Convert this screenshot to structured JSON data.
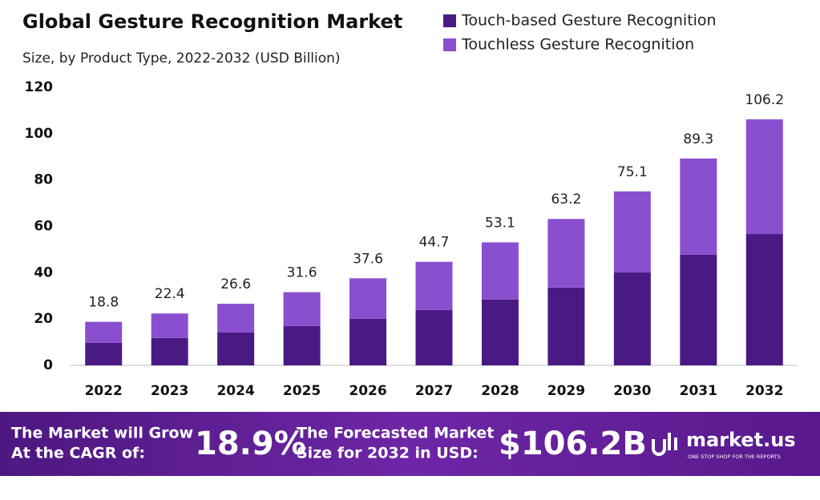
{
  "chart_data": {
    "type": "stacked_bar",
    "title": "Global Gesture Recognition Market",
    "subtitle": "Size, by Product Type, 2022-2032 (USD Billion)",
    "categories": [
      "2022",
      "2023",
      "2024",
      "2025",
      "2026",
      "2027",
      "2028",
      "2029",
      "2030",
      "2031",
      "2032"
    ],
    "series": [
      {
        "name": "Touch-based Gesture Recognition",
        "color": "#4a1a84",
        "values": [
          9.7,
          11.8,
          14.2,
          17.0,
          20.1,
          23.9,
          28.4,
          33.6,
          40.1,
          47.8,
          56.7
        ]
      },
      {
        "name": "Touchless Gesture Recognition",
        "color": "#8a4fcf",
        "values": [
          9.1,
          10.6,
          12.4,
          14.6,
          17.5,
          20.8,
          24.7,
          29.6,
          35.0,
          41.5,
          49.5
        ]
      }
    ],
    "totals": [
      18.8,
      22.4,
      26.6,
      31.6,
      37.6,
      44.7,
      53.1,
      63.2,
      75.1,
      89.3,
      106.2
    ],
    "ylim": [
      0,
      120
    ],
    "yticks": [
      0,
      20,
      40,
      60,
      80,
      100,
      120
    ],
    "grid": false
  },
  "footer": {
    "cagr_text": [
      "The Market will Grow",
      "At the CAGR of:"
    ],
    "cagr": "18.9%",
    "forecast_text": [
      "The Forecasted Market",
      "Size for 2032 in USD:"
    ],
    "forecast": "$106.2B",
    "brand": "market.us",
    "tagline": "ONE STOP SHOP FOR THE REPORTS"
  }
}
